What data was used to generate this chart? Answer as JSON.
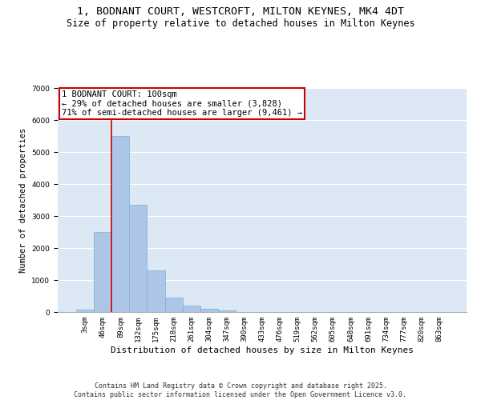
{
  "title_line1": "1, BODNANT COURT, WESTCROFT, MILTON KEYNES, MK4 4DT",
  "title_line2": "Size of property relative to detached houses in Milton Keynes",
  "xlabel": "Distribution of detached houses by size in Milton Keynes",
  "ylabel": "Number of detached properties",
  "bar_color": "#adc6e8",
  "bar_edgecolor": "#7aafd4",
  "bg_color": "#dde8f5",
  "grid_color": "#ffffff",
  "categories": [
    "3sqm",
    "46sqm",
    "89sqm",
    "132sqm",
    "175sqm",
    "218sqm",
    "261sqm",
    "304sqm",
    "347sqm",
    "390sqm",
    "433sqm",
    "476sqm",
    "519sqm",
    "562sqm",
    "605sqm",
    "648sqm",
    "691sqm",
    "734sqm",
    "777sqm",
    "820sqm",
    "863sqm"
  ],
  "values": [
    80,
    2500,
    5500,
    3350,
    1300,
    450,
    190,
    90,
    60,
    0,
    0,
    0,
    0,
    0,
    0,
    0,
    0,
    0,
    0,
    0,
    0
  ],
  "property_label": "1 BODNANT COURT: 100sqm",
  "annotation_line2": "← 29% of detached houses are smaller (3,828)",
  "annotation_line3": "71% of semi-detached houses are larger (9,461) →",
  "vline_x_index": 2,
  "vline_color": "#cc0000",
  "annotation_box_color": "#ffffff",
  "annotation_box_edgecolor": "#cc0000",
  "ylim": [
    0,
    7000
  ],
  "yticks": [
    0,
    1000,
    2000,
    3000,
    4000,
    5000,
    6000,
    7000
  ],
  "footer_line1": "Contains HM Land Registry data © Crown copyright and database right 2025.",
  "footer_line2": "Contains public sector information licensed under the Open Government Licence v3.0.",
  "title_fontsize": 9.5,
  "subtitle_fontsize": 8.5,
  "xlabel_fontsize": 8,
  "ylabel_fontsize": 7.5,
  "tick_fontsize": 6.5,
  "footer_fontsize": 6,
  "annot_fontsize": 7.5
}
